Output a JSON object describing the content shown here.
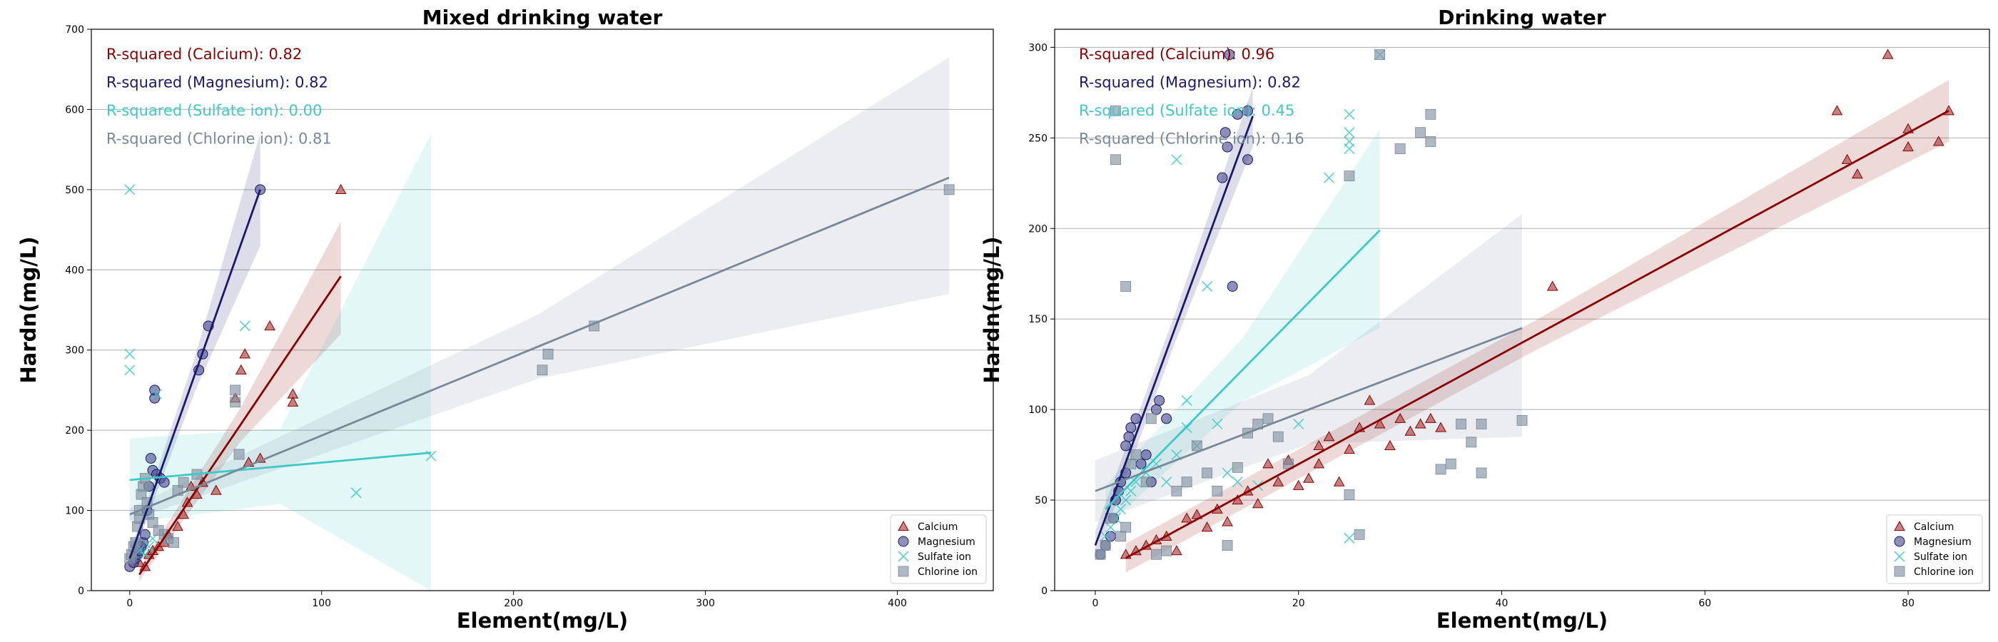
{
  "figure": {
    "xlabel": "Element(mg/L)",
    "ylabel": "Hardn(mg/L)"
  },
  "series_styles": [
    {
      "name": "Calcium",
      "color": "#8b0000",
      "marker": "triangle"
    },
    {
      "name": "Magnesium",
      "color": "#191970",
      "marker": "circle"
    },
    {
      "name": "Sulfate ion",
      "color": "#40c8c8",
      "marker": "x"
    },
    {
      "name": "Chlorine ion",
      "color": "#778899",
      "marker": "square"
    }
  ],
  "chart_data": [
    {
      "type": "scatter",
      "title": "Mixed drinking water",
      "xlabel": "Element(mg/L)",
      "ylabel": "Hardn(mg/L)",
      "xlim": [
        -20,
        450
      ],
      "ylim": [
        0,
        700
      ],
      "xticks": [
        0,
        100,
        200,
        300,
        400
      ],
      "yticks": [
        0,
        100,
        200,
        300,
        400,
        500,
        600,
        700
      ],
      "grid": "horizontal",
      "legend_position": "lower-right",
      "legend": [
        "Calcium",
        "Magnesium",
        "Sulfate ion",
        "Chlorine ion"
      ],
      "annotations": [
        "R-squared (Calcium): 0.82",
        "R-squared (Magnesium): 0.82",
        "R-squared (Sulfate ion): 0.00",
        "R-squared (Chlorine ion): 0.81"
      ],
      "series": [
        {
          "name": "Calcium",
          "points": [
            [
              5,
              35
            ],
            [
              8,
              30
            ],
            [
              10,
              45
            ],
            [
              12,
              50
            ],
            [
              15,
              55
            ],
            [
              18,
              60
            ],
            [
              20,
              70
            ],
            [
              25,
              80
            ],
            [
              28,
              95
            ],
            [
              30,
              110
            ],
            [
              32,
              130
            ],
            [
              35,
              120
            ],
            [
              38,
              135
            ],
            [
              45,
              125
            ],
            [
              55,
              240
            ],
            [
              58,
              275
            ],
            [
              60,
              295
            ],
            [
              62,
              160
            ],
            [
              68,
              165
            ],
            [
              73,
              330
            ],
            [
              85,
              245
            ],
            [
              85,
              235
            ],
            [
              110,
              500
            ]
          ],
          "fit": {
            "x": [
              5,
              110
            ],
            "y": [
              20,
              392
            ],
            "ci_lower_end": 320,
            "ci_upper_end": 460
          }
        },
        {
          "name": "Magnesium",
          "points": [
            [
              0,
              30
            ],
            [
              2,
              35
            ],
            [
              3,
              40
            ],
            [
              4,
              45
            ],
            [
              5,
              50
            ],
            [
              6,
              55
            ],
            [
              7,
              60
            ],
            [
              8,
              70
            ],
            [
              9,
              100
            ],
            [
              10,
              130
            ],
            [
              11,
              165
            ],
            [
              12,
              150
            ],
            [
              13,
              240
            ],
            [
              13,
              250
            ],
            [
              14,
              145
            ],
            [
              16,
              140
            ],
            [
              18,
              135
            ],
            [
              36,
              275
            ],
            [
              38,
              295
            ],
            [
              41,
              330
            ],
            [
              68,
              500
            ]
          ],
          "fit": {
            "x": [
              0,
              68
            ],
            "y": [
              40,
              500
            ],
            "ci_lower_end": 430,
            "ci_upper_end": 570
          }
        },
        {
          "name": "Sulfate ion",
          "points": [
            [
              0,
              500
            ],
            [
              0,
              295
            ],
            [
              0,
              275
            ],
            [
              3,
              60
            ],
            [
              5,
              50
            ],
            [
              8,
              45
            ],
            [
              10,
              55
            ],
            [
              12,
              65
            ],
            [
              14,
              245
            ],
            [
              60,
              330
            ],
            [
              118,
              122
            ],
            [
              157,
              168
            ]
          ],
          "fit": {
            "x": [
              0,
              157
            ],
            "y": [
              138,
              172
            ],
            "ci_lower_end": 0,
            "ci_upper_end": 570,
            "ci_lower_start": 85,
            "ci_upper_start": 190
          }
        },
        {
          "name": "Chlorine ion",
          "points": [
            [
              0,
              40
            ],
            [
              1,
              45
            ],
            [
              2,
              55
            ],
            [
              3,
              60
            ],
            [
              4,
              80
            ],
            [
              5,
              90
            ],
            [
              5,
              100
            ],
            [
              6,
              120
            ],
            [
              7,
              130
            ],
            [
              8,
              140
            ],
            [
              9,
              110
            ],
            [
              10,
              95
            ],
            [
              12,
              85
            ],
            [
              15,
              75
            ],
            [
              18,
              70
            ],
            [
              20,
              65
            ],
            [
              23,
              60
            ],
            [
              25,
              125
            ],
            [
              28,
              135
            ],
            [
              35,
              145
            ],
            [
              55,
              235
            ],
            [
              55,
              250
            ],
            [
              57,
              170
            ],
            [
              215,
              275
            ],
            [
              218,
              295
            ],
            [
              242,
              330
            ],
            [
              427,
              500
            ]
          ],
          "fit": {
            "x": [
              0,
              427
            ],
            "y": [
              95,
              515
            ],
            "ci_lower_end": 370,
            "ci_upper_end": 665
          }
        }
      ]
    },
    {
      "type": "scatter",
      "title": "Drinking water",
      "xlabel": "Element(mg/L)",
      "ylabel": "Hardn(mg/L)",
      "xlim": [
        -4,
        88
      ],
      "ylim": [
        0,
        310
      ],
      "xticks": [
        0,
        20,
        40,
        60,
        80
      ],
      "yticks": [
        0,
        50,
        100,
        150,
        200,
        250,
        300
      ],
      "grid": "horizontal",
      "legend_position": "lower-right",
      "legend": [
        "Calcium",
        "Magnesium",
        "Sulfate ion",
        "Chlorine ion"
      ],
      "annotations": [
        "R-squared (Calcium): 0.96",
        "R-squared (Magnesium): 0.82",
        "R-squared (Sulfate ion): 0.45",
        "R-squared (Chlorine ion): 0.16"
      ],
      "series": [
        {
          "name": "Calcium",
          "points": [
            [
              3,
              20
            ],
            [
              4,
              22
            ],
            [
              5,
              25
            ],
            [
              6,
              28
            ],
            [
              7,
              30
            ],
            [
              8,
              22
            ],
            [
              9,
              40
            ],
            [
              10,
              42
            ],
            [
              11,
              35
            ],
            [
              12,
              45
            ],
            [
              13,
              38
            ],
            [
              14,
              50
            ],
            [
              15,
              55
            ],
            [
              16,
              48
            ],
            [
              17,
              70
            ],
            [
              18,
              60
            ],
            [
              19,
              72
            ],
            [
              20,
              58
            ],
            [
              21,
              62
            ],
            [
              22,
              80
            ],
            [
              22,
              70
            ],
            [
              23,
              85
            ],
            [
              24,
              60
            ],
            [
              25,
              78
            ],
            [
              26,
              90
            ],
            [
              27,
              105
            ],
            [
              28,
              92
            ],
            [
              29,
              80
            ],
            [
              30,
              95
            ],
            [
              31,
              88
            ],
            [
              32,
              92
            ],
            [
              33,
              95
            ],
            [
              34,
              90
            ],
            [
              45,
              168
            ],
            [
              73,
              265
            ],
            [
              74,
              238
            ],
            [
              75,
              230
            ],
            [
              78,
              296
            ],
            [
              80,
              245
            ],
            [
              80,
              255
            ],
            [
              83,
              248
            ],
            [
              84,
              265
            ]
          ],
          "fit": {
            "x": [
              3,
              84
            ],
            "y": [
              18,
              265
            ],
            "ci_lower_end": 248,
            "ci_upper_end": 282
          }
        },
        {
          "name": "Magnesium",
          "points": [
            [
              0.5,
              20
            ],
            [
              1,
              25
            ],
            [
              1.5,
              30
            ],
            [
              1.8,
              40
            ],
            [
              2,
              50
            ],
            [
              2.3,
              55
            ],
            [
              2.5,
              60
            ],
            [
              3,
              65
            ],
            [
              3,
              80
            ],
            [
              3.3,
              85
            ],
            [
              3.5,
              90
            ],
            [
              4,
              95
            ],
            [
              4.5,
              70
            ],
            [
              5,
              75
            ],
            [
              5.5,
              60
            ],
            [
              6,
              100
            ],
            [
              6.3,
              105
            ],
            [
              7,
              95
            ],
            [
              12.5,
              228
            ],
            [
              12.8,
              253
            ],
            [
              13,
              245
            ],
            [
              13.2,
              296
            ],
            [
              13.5,
              168
            ],
            [
              14,
              263
            ],
            [
              15,
              238
            ],
            [
              15,
              265
            ]
          ],
          "fit": {
            "x": [
              0,
              15.5
            ],
            "y": [
              25,
              262
            ],
            "ci_lower_end": 245,
            "ci_upper_end": 278
          }
        },
        {
          "name": "Sulfate ion",
          "points": [
            [
              1,
              30
            ],
            [
              1.5,
              35
            ],
            [
              2,
              40
            ],
            [
              2.5,
              45
            ],
            [
              3,
              50
            ],
            [
              3.5,
              55
            ],
            [
              4,
              60
            ],
            [
              5,
              65
            ],
            [
              6,
              70
            ],
            [
              7,
              60
            ],
            [
              8,
              75
            ],
            [
              8,
              238
            ],
            [
              9,
              105
            ],
            [
              9,
              90
            ],
            [
              10,
              80
            ],
            [
              11,
              168
            ],
            [
              12,
              92
            ],
            [
              13,
              65
            ],
            [
              14,
              60
            ],
            [
              16,
              58
            ],
            [
              20,
              92
            ],
            [
              23,
              228
            ],
            [
              25,
              29
            ],
            [
              25,
              244
            ],
            [
              25,
              248
            ],
            [
              25,
              253
            ],
            [
              25,
              263
            ],
            [
              28,
              296
            ]
          ],
          "fit": {
            "x": [
              1,
              28
            ],
            "y": [
              45,
              199
            ],
            "ci_lower_end": 145,
            "ci_upper_end": 255,
            "ci_lower_start": 35,
            "ci_upper_start": 58
          }
        },
        {
          "name": "Chlorine ion",
          "points": [
            [
              0.5,
              20
            ],
            [
              1,
              25
            ],
            [
              1.5,
              40
            ],
            [
              2,
              238
            ],
            [
              2,
              265
            ],
            [
              2.5,
              30
            ],
            [
              3,
              35
            ],
            [
              3,
              168
            ],
            [
              3.5,
              70
            ],
            [
              4,
              75
            ],
            [
              5,
              60
            ],
            [
              5.5,
              95
            ],
            [
              6,
              20
            ],
            [
              7,
              22
            ],
            [
              8,
              55
            ],
            [
              9,
              60
            ],
            [
              10,
              80
            ],
            [
              11,
              65
            ],
            [
              12,
              55
            ],
            [
              13,
              25
            ],
            [
              14,
              68
            ],
            [
              15,
              87
            ],
            [
              16,
              92
            ],
            [
              17,
              95
            ],
            [
              18,
              85
            ],
            [
              19,
              70
            ],
            [
              25,
              229
            ],
            [
              25,
              53
            ],
            [
              26,
              31
            ],
            [
              28,
              296
            ],
            [
              30,
              244
            ],
            [
              32,
              253
            ],
            [
              33,
              263
            ],
            [
              33,
              248
            ],
            [
              34,
              67
            ],
            [
              35,
              70
            ],
            [
              36,
              92
            ],
            [
              37,
              82
            ],
            [
              38,
              65
            ],
            [
              38,
              92
            ],
            [
              42,
              94
            ]
          ],
          "fit": {
            "x": [
              0,
              42
            ],
            "y": [
              55,
              145
            ],
            "ci_lower_end": 85,
            "ci_upper_end": 208,
            "ci_lower_start": 38,
            "ci_upper_start": 72
          }
        }
      ]
    }
  ]
}
